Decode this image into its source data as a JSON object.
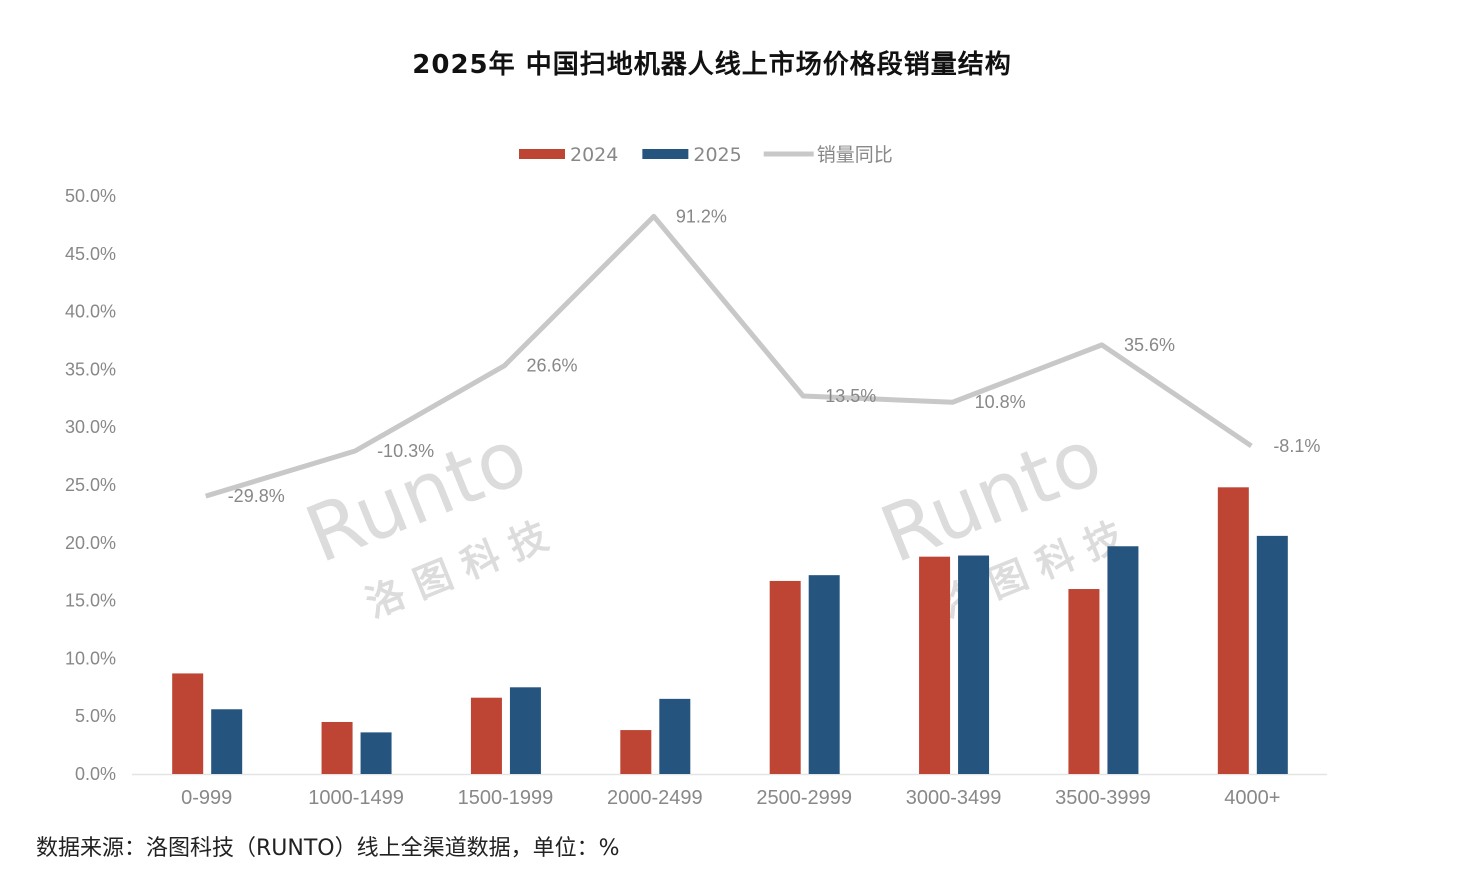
{
  "chart_data": {
    "type": "bar+line",
    "title": "2025年 中国扫地机器人线上市场价格段销量结构",
    "categories": [
      "0-999",
      "1000-1499",
      "1500-1999",
      "2000-2499",
      "2500-2999",
      "3000-3499",
      "3500-3999",
      "4000+"
    ],
    "series": [
      {
        "name": "2024",
        "type": "bar",
        "axis": "left",
        "color": "#BE4433",
        "values": [
          8.7,
          4.5,
          6.6,
          3.8,
          16.7,
          18.8,
          16.0,
          24.8
        ]
      },
      {
        "name": "2025",
        "type": "bar",
        "axis": "left",
        "color": "#25557F",
        "values": [
          5.6,
          3.6,
          7.5,
          6.5,
          17.2,
          18.9,
          19.7,
          20.6
        ]
      },
      {
        "name": "销量同比",
        "type": "line",
        "axis": "right-hidden",
        "color": "#C8C8C8",
        "values": [
          -29.8,
          -10.3,
          26.6,
          91.2,
          13.5,
          10.8,
          35.6,
          -8.1
        ],
        "labels": [
          "-29.8%",
          "-10.3%",
          "26.6%",
          "91.2%",
          "13.5%",
          "10.8%",
          "35.6%",
          "-8.1%"
        ]
      }
    ],
    "ylim": [
      0,
      50
    ],
    "yticks": [
      "0.0%",
      "5.0%",
      "10.0%",
      "15.0%",
      "20.0%",
      "25.0%",
      "30.0%",
      "35.0%",
      "40.0%",
      "45.0%",
      "50.0%"
    ],
    "y2lim": [
      -150,
      100
    ],
    "legend": "top",
    "grid": false
  },
  "watermark": {
    "logo": "Runto",
    "cn": "洛 图 科 技"
  },
  "source": "数据来源：洛图科技（RUNTO）线上全渠道数据，单位：%"
}
